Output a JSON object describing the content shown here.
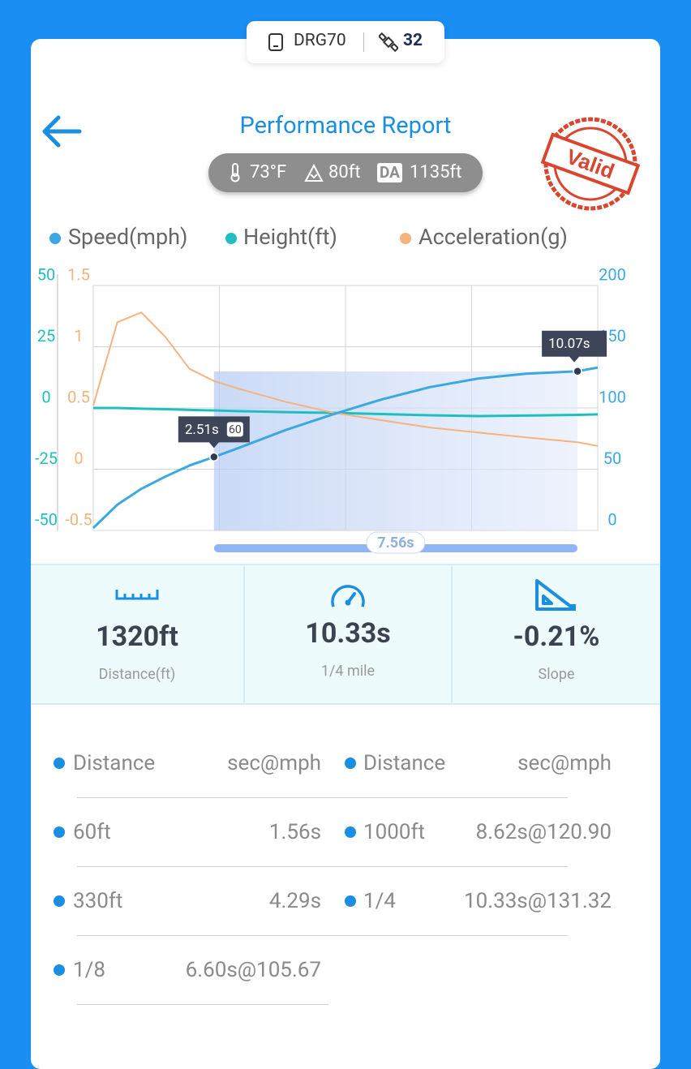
{
  "device": {
    "name": "DRG70",
    "satellites": "32"
  },
  "header": {
    "title": "Performance Report",
    "stamp": "Valid"
  },
  "conditions": {
    "temperature": "73°F",
    "altitude": "80ft",
    "da_label": "DA",
    "density_altitude": "1135ft"
  },
  "chart_data": {
    "type": "line",
    "x": [
      0,
      0.5,
      1,
      1.5,
      2,
      2.51,
      3,
      4,
      5,
      6,
      7,
      8,
      9,
      10.07,
      10.49
    ],
    "xlim": [
      0,
      10.49
    ],
    "series": [
      {
        "name": "Speed(mph)",
        "color": "#3ba8e2",
        "values": [
          2,
          21,
          34,
          44,
          53,
          60,
          67,
          82,
          95,
          107,
          117,
          124,
          128,
          130,
          133
        ]
      },
      {
        "name": "Height(ft)",
        "color": "#1fbfbf",
        "axis": "y2",
        "values": [
          0,
          0,
          -0.3,
          -0.5,
          -0.8,
          -1,
          -1.3,
          -1.7,
          -2,
          -2.5,
          -3,
          -3.3,
          -3.1,
          -2.8,
          -2.6
        ]
      },
      {
        "name": "Acceleration(g)",
        "color": "#f5b37e",
        "axis": "y3",
        "values": [
          0.52,
          1.2,
          1.28,
          1.08,
          0.82,
          0.72,
          0.66,
          0.55,
          0.46,
          0.4,
          0.34,
          0.3,
          0.26,
          0.22,
          0.19
        ]
      }
    ],
    "ylim": [
      0,
      200
    ],
    "yticks": [
      0,
      50,
      100,
      150,
      200
    ],
    "y2lim": [
      -50,
      50
    ],
    "y2ticks": [
      -50,
      -25,
      0,
      25,
      50
    ],
    "y3lim": [
      -0.5,
      1.5
    ],
    "y3ticks": [
      -0.5,
      0,
      0.5,
      1,
      1.5
    ],
    "grid": true,
    "markers": [
      {
        "x": 2.51,
        "label": "2.51s",
        "badge": "60"
      },
      {
        "x": 10.07,
        "label": "10.07s"
      }
    ],
    "duration_label": "7.56s"
  },
  "stats": [
    {
      "value": "1320ft",
      "label": "Distance(ft)"
    },
    {
      "value": "10.33s",
      "label": "1/4 mile"
    },
    {
      "value": "-0.21%",
      "label": "Slope"
    }
  ],
  "table": {
    "columns": [
      [
        "Distance",
        "sec@mph"
      ],
      [
        "Distance",
        "sec@mph"
      ]
    ],
    "rows": [
      [
        "60ft",
        "1.56s",
        "1000ft",
        "8.62s@120.90"
      ],
      [
        "330ft",
        "4.29s",
        "1/4",
        "10.33s@131.32"
      ],
      [
        "1/8",
        "6.60s@105.67"
      ]
    ]
  }
}
